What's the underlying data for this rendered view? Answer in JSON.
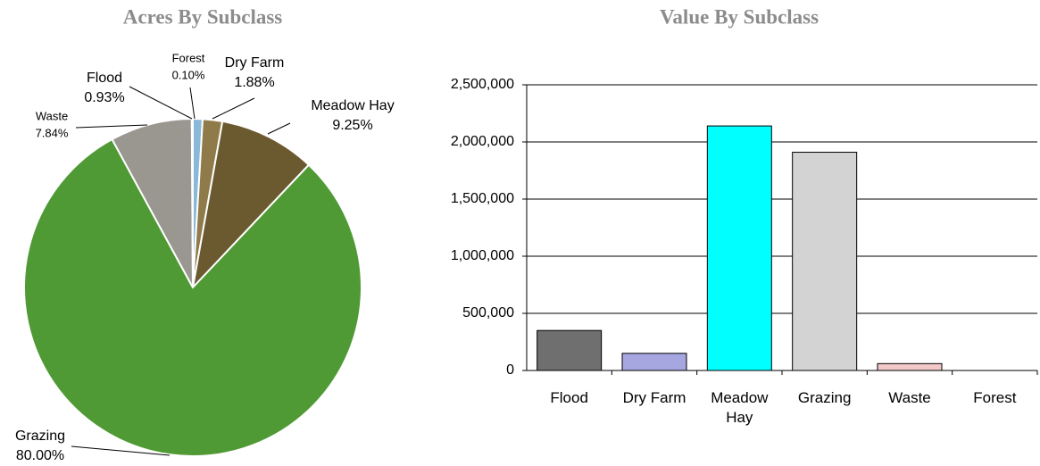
{
  "chart_data": [
    {
      "type": "pie",
      "title": "Acres By Subclass",
      "labels": [
        "Flood",
        "Dry Farm",
        "Meadow Hay",
        "Grazing",
        "Waste",
        "Forest"
      ],
      "values": [
        0.93,
        1.88,
        9.25,
        80.0,
        7.84,
        0.1
      ],
      "value_labels": [
        "0.93%",
        "1.88%",
        "9.25%",
        "80.00%",
        "7.84%",
        "0.10%"
      ],
      "colors": [
        "#8ab8d8",
        "#8f7a4a",
        "#6b5a30",
        "#4f9a34",
        "#9a9690",
        "#3f6f3a"
      ]
    },
    {
      "type": "bar",
      "title": "Value By Subclass",
      "categories": [
        "Flood",
        "Dry Farm",
        "Meadow Hay",
        "Grazing",
        "Waste",
        "Forest"
      ],
      "values": [
        350000,
        150000,
        2140000,
        1910000,
        60000,
        0
      ],
      "colors": [
        "#6f6f6f",
        "#a6a6e0",
        "#00ffff",
        "#d3d3d3",
        "#f2c8c8",
        "#ffffff"
      ],
      "ylim": [
        0,
        2500000
      ],
      "yticks": [
        0,
        {
          "value": 500000,
          "label": "500,000"
        },
        {
          "value": 1000000,
          "label": "1,000,000"
        },
        {
          "value": 1500000,
          "label": "1,500,000"
        },
        {
          "value": 2000000,
          "label": "2,000,000"
        },
        {
          "value": 2500000,
          "label": "2,500,000"
        }
      ],
      "grid": true
    }
  ]
}
